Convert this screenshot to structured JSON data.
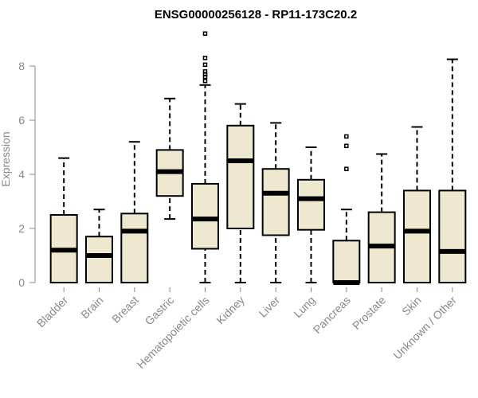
{
  "chart_data": {
    "type": "boxplot",
    "title": "ENSG00000256128 - RP11-173C20.2",
    "xlabel": "",
    "ylabel": "Expression",
    "ylim": [
      0,
      9.2
    ],
    "yticks": [
      "0",
      "2",
      "4",
      "6",
      "8"
    ],
    "grid": false,
    "box_fill": "#efe8d0",
    "box_stroke": "#000000",
    "axis_color": "#888888",
    "categories": [
      "Bladder",
      "Brain",
      "Breast",
      "Gastric",
      "Hematopoietic cells",
      "Kidney",
      "Liver",
      "Lung",
      "Pancreas",
      "Prostate",
      "Skin",
      "Unknown / Other"
    ],
    "boxes": [
      {
        "min": 0,
        "q1": 0,
        "median": 1.2,
        "q3": 2.5,
        "max": 4.6,
        "outliers": []
      },
      {
        "min": 0,
        "q1": 0,
        "median": 1.0,
        "q3": 1.7,
        "max": 2.7,
        "outliers": []
      },
      {
        "min": 0,
        "q1": 0,
        "median": 1.9,
        "q3": 2.55,
        "max": 5.2,
        "outliers": []
      },
      {
        "min": 2.35,
        "q1": 3.2,
        "median": 4.1,
        "q3": 4.9,
        "max": 6.8,
        "outliers": []
      },
      {
        "min": 0,
        "q1": 1.25,
        "median": 2.35,
        "q3": 3.65,
        "max": 7.3,
        "outliers": [
          7.45,
          7.6,
          7.7,
          7.8,
          8.05,
          8.3,
          9.2
        ]
      },
      {
        "min": 0,
        "q1": 2.0,
        "median": 4.5,
        "q3": 5.8,
        "max": 6.6,
        "outliers": []
      },
      {
        "min": 0,
        "q1": 1.75,
        "median": 3.3,
        "q3": 4.2,
        "max": 5.9,
        "outliers": []
      },
      {
        "min": 0,
        "q1": 1.95,
        "median": 3.1,
        "q3": 3.8,
        "max": 5.0,
        "outliers": []
      },
      {
        "min": 0,
        "q1": 0,
        "median": 0,
        "q3": 1.55,
        "max": 2.7,
        "outliers": [
          4.2,
          5.05,
          5.4
        ]
      },
      {
        "min": 0,
        "q1": 0,
        "median": 1.35,
        "q3": 2.6,
        "max": 4.75,
        "outliers": []
      },
      {
        "min": 0,
        "q1": 0,
        "median": 1.9,
        "q3": 3.4,
        "max": 5.75,
        "outliers": []
      },
      {
        "min": 0,
        "q1": 0,
        "median": 1.15,
        "q3": 3.4,
        "max": 8.25,
        "outliers": []
      }
    ]
  }
}
